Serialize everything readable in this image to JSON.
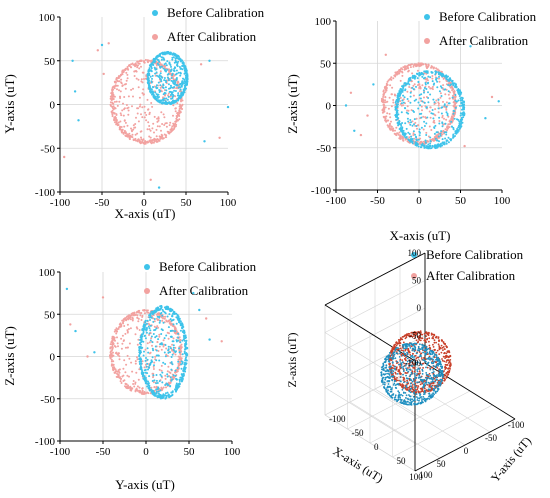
{
  "colors": {
    "before": "#3ec3ea",
    "after": "#f2a2a0",
    "before_3d": "#1f8fc0",
    "after_3d": "#c8402a",
    "grid": "#d6d6d6"
  },
  "legend": {
    "before": "Before Calibration",
    "after": "After Calibration"
  },
  "chart_data": [
    {
      "type": "scatter",
      "panel": "xy",
      "xlabel": "X-axis (uT)",
      "ylabel": "Y-axis (uT)",
      "xlim": [
        -100,
        100
      ],
      "ylim": [
        -100,
        100
      ],
      "xticks": [
        "-100",
        "-50",
        "0",
        "50",
        "100"
      ],
      "yticks": [
        "100",
        "50",
        "0",
        "-50",
        "-100"
      ],
      "grid": true,
      "legend_position": "top-right",
      "series": [
        {
          "name": "Before Calibration",
          "shape": "circle",
          "center": [
            28,
            30
          ],
          "radius": [
            24,
            30
          ]
        },
        {
          "name": "After Calibration",
          "shape": "circle",
          "center": [
            3,
            3
          ],
          "radius": [
            43,
            48
          ]
        }
      ],
      "outliers": [
        [
          -85,
          50
        ],
        [
          -55,
          62
        ],
        [
          -50,
          68
        ],
        [
          -42,
          70
        ],
        [
          -78,
          -18
        ],
        [
          -95,
          -60
        ],
        [
          -82,
          15
        ],
        [
          -48,
          35
        ],
        [
          100,
          -3
        ],
        [
          90,
          -38
        ],
        [
          72,
          -42
        ],
        [
          68,
          46
        ],
        [
          78,
          50
        ],
        [
          8,
          -86
        ],
        [
          18,
          -95
        ]
      ]
    },
    {
      "type": "scatter",
      "panel": "xz",
      "xlabel": "X-axis (uT)",
      "ylabel": "Z-axis (uT)",
      "xlim": [
        -100,
        100
      ],
      "ylim": [
        -100,
        100
      ],
      "xticks": [
        "-100",
        "-50",
        "0",
        "50",
        "100"
      ],
      "yticks": [
        "100",
        "50",
        "0",
        "-50",
        "-100"
      ],
      "grid": true,
      "legend_position": "top-right",
      "series": [
        {
          "name": "Before Calibration",
          "shape": "circle",
          "center": [
            13,
            -5
          ],
          "radius": [
            42,
            46
          ]
        },
        {
          "name": "After Calibration",
          "shape": "circle",
          "center": [
            0,
            2
          ],
          "radius": [
            45,
            48
          ]
        }
      ],
      "outliers": [
        [
          -88,
          0
        ],
        [
          -82,
          15
        ],
        [
          -78,
          -30
        ],
        [
          -62,
          -12
        ],
        [
          -55,
          25
        ],
        [
          -40,
          60
        ],
        [
          62,
          70
        ],
        [
          88,
          10
        ],
        [
          80,
          -15
        ],
        [
          55,
          -48
        ],
        [
          96,
          5
        ],
        [
          -70,
          -35
        ]
      ]
    },
    {
      "type": "scatter",
      "panel": "yz",
      "xlabel": "Y-axis (uT)",
      "ylabel": "Z-axis (uT)",
      "xlim": [
        -100,
        100
      ],
      "ylim": [
        -100,
        100
      ],
      "xticks": [
        "-100",
        "-50",
        "0",
        "50",
        "100"
      ],
      "yticks": [
        "100",
        "50",
        "0",
        "-50",
        "-100"
      ],
      "grid": true,
      "legend_position": "top-right",
      "series": [
        {
          "name": "Before Calibration",
          "shape": "circle",
          "center": [
            20,
            5
          ],
          "radius": [
            28,
            55
          ]
        },
        {
          "name": "After Calibration",
          "shape": "circle",
          "center": [
            0,
            5
          ],
          "radius": [
            42,
            50
          ]
        }
      ],
      "outliers": [
        [
          -92,
          80
        ],
        [
          -88,
          38
        ],
        [
          -82,
          30
        ],
        [
          -50,
          70
        ],
        [
          62,
          55
        ],
        [
          70,
          45
        ],
        [
          74,
          20
        ],
        [
          -68,
          0
        ],
        [
          -60,
          5
        ],
        [
          88,
          18
        ],
        [
          55,
          75
        ]
      ]
    },
    {
      "type": "scatter3d",
      "panel": "xyz",
      "xlabel": "X-axis (uT)",
      "ylabel": "Y-axis (uT)",
      "zlabel": "Z-axis (uT)",
      "xticks": [
        "-100",
        "-50",
        "0",
        "50",
        "100"
      ],
      "yticks": [
        "-100",
        "-50",
        "0",
        "50",
        "100"
      ],
      "zticks": [
        "100",
        "50",
        "0",
        "-50",
        "-100"
      ],
      "grid": true,
      "series": [
        {
          "name": "Before Calibration",
          "shape": "sphere",
          "center": [
            25,
            10,
            -5
          ],
          "radius": 46
        },
        {
          "name": "After Calibration",
          "shape": "sphere",
          "center": [
            0,
            0,
            0
          ],
          "radius": 46
        }
      ]
    }
  ]
}
